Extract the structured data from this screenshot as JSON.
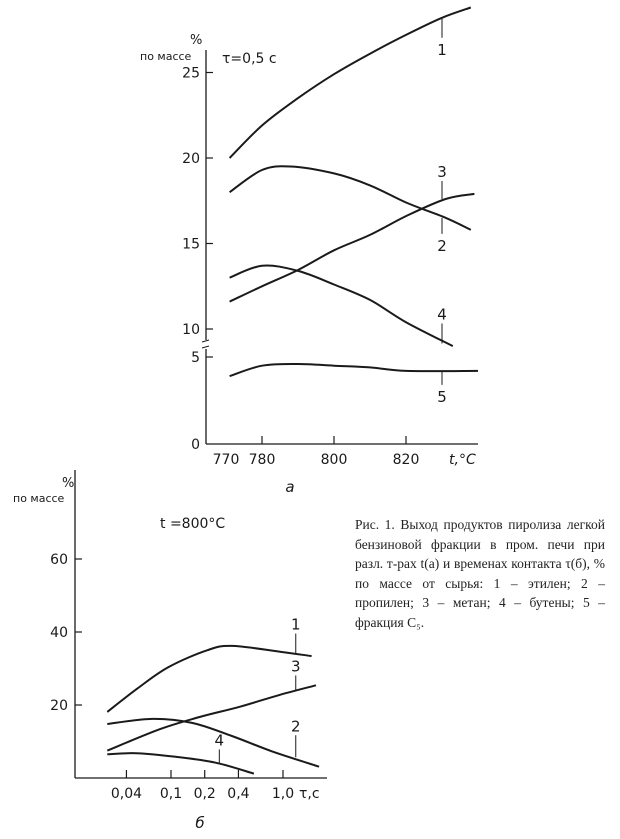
{
  "caption": "Рис. 1. Выход продуктов пиролиза легкой бензиновой фракции в пром. печи при разл. т-рах t(a) и временах контакта τ(б), % по массе от сырья: 1 – этилен; 2 – пропилен; 3 – метан; 4 – бутены; 5 – фракция C₅.",
  "chart_data": [
    {
      "type": "line",
      "panel_label": "а",
      "annotation": "τ=0,5 с",
      "ylabel_top": "%",
      "ylabel": "по массе",
      "xlabel": "t,°C",
      "xticks": [
        770,
        780,
        800,
        820
      ],
      "yticks_lower": [
        0,
        5
      ],
      "yticks_upper": [
        10,
        15,
        20,
        25
      ],
      "y_axis_break": [
        5.5,
        9.3
      ],
      "xlim": [
        767,
        845
      ],
      "series": [
        {
          "name": "1",
          "x": [
            771,
            780,
            790,
            800,
            810,
            820,
            830,
            838
          ],
          "y": [
            20.0,
            21.9,
            23.5,
            24.9,
            26.1,
            27.2,
            28.2,
            28.8
          ]
        },
        {
          "name": "2",
          "x": [
            771,
            780,
            788,
            800,
            810,
            820,
            831,
            838
          ],
          "y": [
            18.0,
            19.3,
            19.5,
            19.1,
            18.4,
            17.4,
            16.5,
            15.8
          ]
        },
        {
          "name": "3",
          "x": [
            771,
            780,
            790,
            800,
            810,
            820,
            831,
            839
          ],
          "y": [
            11.6,
            12.5,
            13.45,
            14.6,
            15.5,
            16.6,
            17.6,
            17.9
          ]
        },
        {
          "name": "4",
          "x": [
            771,
            780,
            790,
            800,
            810,
            820,
            833
          ],
          "y": [
            13.0,
            13.7,
            13.4,
            12.6,
            11.7,
            10.4,
            9.0
          ]
        },
        {
          "name": "5",
          "x": [
            771,
            780,
            790,
            800,
            810,
            820,
            840
          ],
          "y": [
            3.9,
            4.5,
            4.6,
            4.5,
            4.4,
            4.2,
            4.2
          ]
        }
      ],
      "curve_labels": [
        {
          "text": "1",
          "at_x": 830
        },
        {
          "text": "3",
          "at_x": 830
        },
        {
          "text": "2",
          "at_x": 830
        },
        {
          "text": "4",
          "at_x": 830
        },
        {
          "text": "5",
          "at_x": 830
        }
      ]
    },
    {
      "type": "line",
      "panel_label": "б",
      "annotation": "t =800°C",
      "ylabel_top": "%",
      "ylabel": "по массе",
      "xlabel": "τ,с",
      "xscale": "log",
      "xticks": [
        0.04,
        0.1,
        0.2,
        0.4,
        1.0
      ],
      "xtick_labels": [
        "0,04",
        "0,1",
        "0,2",
        "0,4",
        "1,0"
      ],
      "yticks": [
        20,
        40,
        60
      ],
      "ylim": [
        0,
        80
      ],
      "series": [
        {
          "name": "1",
          "x": [
            0.027,
            0.05,
            0.094,
            0.21,
            0.35,
            0.94,
            1.8
          ],
          "y": [
            18.1,
            24.5,
            30.3,
            35.0,
            36.2,
            34.6,
            33.4
          ]
        },
        {
          "name": "2",
          "x": [
            0.027,
            0.068,
            0.154,
            0.35,
            0.8,
            2.1
          ],
          "y": [
            14.8,
            16.2,
            15.1,
            11.5,
            7.3,
            3.1
          ]
        },
        {
          "name": "3",
          "x": [
            0.027,
            0.08,
            0.18,
            0.41,
            0.94,
            1.97
          ],
          "y": [
            7.5,
            13.4,
            16.7,
            19.5,
            22.8,
            25.4
          ]
        },
        {
          "name": "4",
          "x": [
            0.027,
            0.049,
            0.11,
            0.25,
            0.55
          ],
          "y": [
            6.5,
            6.8,
            5.8,
            4.2,
            1.2
          ]
        }
      ],
      "curve_labels": [
        {
          "text": "1",
          "at_x": 1.3
        },
        {
          "text": "3",
          "at_x": 1.3
        },
        {
          "text": "2",
          "at_x": 1.3
        },
        {
          "text": "4",
          "at_x": 0.27
        }
      ]
    }
  ]
}
